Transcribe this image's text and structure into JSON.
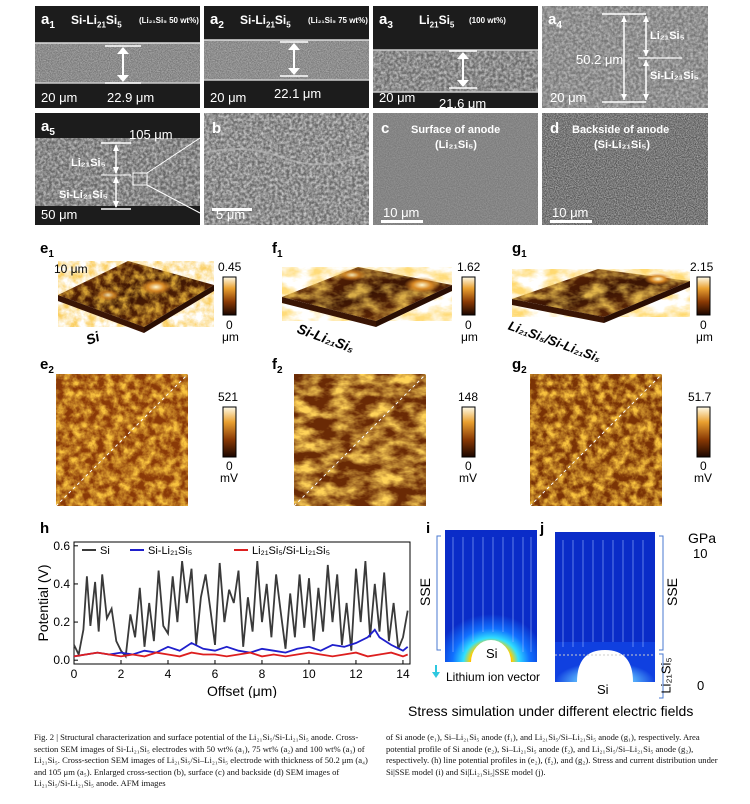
{
  "sem": {
    "a1": {
      "label": "a",
      "sub": "1",
      "title": "Si-Li",
      "title_sub": "21",
      "title_end": "Si",
      "title_sub2": "5",
      "note": "(Li₂₁Si₅ 50 wt%)",
      "thickness": "22.9 μm",
      "scale": "20 μm"
    },
    "a2": {
      "label": "a",
      "sub": "2",
      "title": "Si-Li",
      "title_sub": "21",
      "title_end": "Si",
      "title_sub2": "5",
      "note": "(Li₂₁Si₅ 75 wt%)",
      "thickness": "22.1 μm",
      "scale": "20 μm"
    },
    "a3": {
      "label": "a",
      "sub": "3",
      "title": "Li",
      "title_sub": "21",
      "title_end": "Si",
      "title_sub2": "5",
      "note": "(100 wt%)",
      "thickness": "21.6 μm",
      "scale": "20 μm"
    },
    "a4": {
      "label": "a",
      "sub": "4",
      "thickness": "50.2 μm",
      "layer_top": "Li₂₁Si₅",
      "layer_bottom": "Si-Li₂₁Si₅",
      "scale": "20 μm"
    },
    "a5": {
      "label": "a",
      "sub": "5",
      "thickness": "105 μm",
      "layer_top": "Li₂₁Si₅",
      "layer_bottom": "Si-Li₂₁Si₅",
      "scale": "50 μm"
    },
    "b": {
      "label": "b",
      "scale": "5 μm"
    },
    "c": {
      "label": "c",
      "title": "Surface of anode",
      "subtitle": "(Li₂₁Si₅)",
      "scale": "10 μm"
    },
    "d": {
      "label": "d",
      "title": "Backside of anode",
      "subtitle": "(Si-Li₂₁Si₅)",
      "scale": "10 μm"
    }
  },
  "afm": {
    "e1": {
      "label": "e",
      "sub": "1",
      "name": "Si",
      "size": "10 μm",
      "max": "0.45",
      "min": "0",
      "unit": "μm"
    },
    "f1": {
      "label": "f",
      "sub": "1",
      "name": "Si-Li₂₁Si₅",
      "max": "1.62",
      "min": "0",
      "unit": "μm"
    },
    "g1": {
      "label": "g",
      "sub": "1",
      "name": "Li₂₁Si₅/Si-Li₂₁Si₅",
      "max": "2.15",
      "min": "0",
      "unit": "μm"
    },
    "e2": {
      "label": "e",
      "sub": "2",
      "max": "521",
      "min": "0",
      "unit": "mV"
    },
    "f2": {
      "label": "f",
      "sub": "2",
      "max": "148",
      "min": "0",
      "unit": "mV"
    },
    "g2": {
      "label": "g",
      "sub": "2",
      "max": "51.7",
      "min": "0",
      "unit": "mV"
    }
  },
  "chart_data": {
    "type": "line",
    "label": "h",
    "xlabel": "Offset (μm)",
    "ylabel": "Potential (V)",
    "xlim": [
      0,
      14.3
    ],
    "ylim": [
      -0.02,
      0.62
    ],
    "xticks": [
      0,
      2,
      4,
      6,
      8,
      10,
      12,
      14
    ],
    "yticks": [
      0.0,
      0.2,
      0.4,
      0.6
    ],
    "legend": "top",
    "series": [
      {
        "name": "Si",
        "color": "#3a3a3a",
        "x": [
          0,
          0.2,
          0.4,
          0.55,
          0.7,
          0.9,
          1.05,
          1.2,
          1.4,
          1.6,
          1.8,
          2.0,
          2.2,
          2.4,
          2.6,
          2.8,
          3.0,
          3.2,
          3.4,
          3.6,
          3.8,
          4.0,
          4.2,
          4.4,
          4.6,
          4.8,
          5.0,
          5.2,
          5.4,
          5.6,
          5.8,
          6.0,
          6.2,
          6.4,
          6.6,
          6.8,
          7.0,
          7.2,
          7.4,
          7.6,
          7.8,
          8.0,
          8.2,
          8.4,
          8.6,
          8.8,
          9.0,
          9.2,
          9.4,
          9.6,
          9.8,
          10.0,
          10.2,
          10.4,
          10.6,
          10.8,
          11.0,
          11.2,
          11.4,
          11.6,
          11.8,
          12.0,
          12.2,
          12.4,
          12.6,
          12.8,
          13.0,
          13.2,
          13.4,
          13.6,
          13.8,
          14.0,
          14.2
        ],
        "values": [
          0.08,
          0.03,
          0.16,
          0.44,
          0.18,
          0.41,
          0.15,
          0.45,
          0.22,
          0.27,
          0.1,
          0.05,
          0.02,
          0.24,
          0.12,
          0.38,
          0.07,
          0.3,
          0.1,
          0.47,
          0.18,
          0.14,
          0.44,
          0.2,
          0.52,
          0.3,
          0.48,
          0.08,
          0.33,
          0.45,
          0.27,
          0.08,
          0.51,
          0.2,
          0.37,
          0.3,
          0.47,
          0.07,
          0.33,
          0.15,
          0.52,
          0.2,
          0.4,
          0.12,
          0.45,
          0.25,
          0.06,
          0.35,
          0.12,
          0.45,
          0.17,
          0.43,
          0.1,
          0.38,
          0.15,
          0.5,
          0.2,
          0.45,
          0.08,
          0.3,
          0.05,
          0.48,
          0.2,
          0.52,
          0.12,
          0.4,
          0.15,
          0.46,
          0.1,
          0.3,
          0.06,
          0.12,
          0.26
        ]
      },
      {
        "name": "Si-Li₂₁Si₅",
        "color": "#1f1fcc",
        "x": [
          0,
          0.5,
          1.0,
          1.5,
          2.0,
          2.5,
          3.0,
          3.5,
          4.0,
          4.5,
          5.0,
          5.5,
          6.0,
          6.5,
          7.0,
          7.5,
          8.0,
          8.5,
          9.0,
          9.5,
          10.0,
          10.5,
          11.0,
          11.5,
          12.0,
          12.5,
          12.8,
          13.0,
          13.5,
          14.0,
          14.2
        ],
        "values": [
          0.02,
          0.03,
          0.04,
          0.03,
          0.04,
          0.03,
          0.05,
          0.04,
          0.07,
          0.05,
          0.09,
          0.06,
          0.05,
          0.07,
          0.05,
          0.04,
          0.06,
          0.05,
          0.04,
          0.06,
          0.07,
          0.05,
          0.08,
          0.07,
          0.09,
          0.12,
          0.16,
          0.12,
          0.08,
          0.05,
          0.07
        ]
      },
      {
        "name": "Li₂₁Si₅/Si-Li₂₁Si₅",
        "color": "#dd1f1f",
        "x": [
          0,
          0.5,
          1.0,
          1.5,
          2.0,
          2.5,
          3.0,
          3.5,
          4.0,
          4.5,
          5.0,
          5.5,
          6.0,
          6.5,
          7.0,
          7.5,
          8.0,
          8.5,
          9.0,
          9.5,
          10.0,
          10.5,
          11.0,
          11.5,
          12.0,
          12.5,
          13.0,
          13.5,
          14.0,
          14.2
        ],
        "values": [
          0.02,
          0.03,
          0.04,
          0.03,
          0.02,
          0.03,
          0.02,
          0.04,
          0.03,
          0.02,
          0.04,
          0.03,
          0.03,
          0.02,
          0.03,
          0.04,
          0.02,
          0.03,
          0.02,
          0.03,
          0.04,
          0.03,
          0.02,
          0.03,
          0.04,
          0.02,
          0.03,
          0.04,
          0.02,
          0.03
        ]
      }
    ]
  },
  "sim": {
    "i_label": "i",
    "j_label": "j",
    "sse": "SSE",
    "si": "Si",
    "li_layer": "Li₂₁Si₅",
    "vector": "Lithium ion vector",
    "unit": "GPa",
    "max": "10",
    "min": "0",
    "title": "Stress simulation under different electric fields"
  },
  "caption": {
    "left": "Fig. 2 | Structural characterization and surface potential of the Li₂₁Si₅/Si-Li₂₁Si₅ anode. Cross-section SEM images of Si-Li₂₁Si₅ electrodes with 50 wt% (a₁), 75 wt% (a₂) and 100 wt% (a₃) of Li₂₁Si₅. Cross-section SEM images of Li₂₁Si₅/Si–Li₂₁Si₅ electrode with thickness of 50.2 μm (a₄) and 105 μm (a₅). Enlarged cross-section (b), surface (c) and backside (d) SEM images of Li₂₁Si₅/Si-Li₂₁Si₅ anode. AFM images",
    "right": "of Si anode (e₁), Si–Li₂₁Si₅ anode (f₁), and Li₂₁Si₅/Si–Li₂₁Si₅ anode (g₁), respectively. Area potential profile of Si anode (e₂), Si–Li₂₁Si₅ anode (f₂), and Li₂₁Si₅/Si–Li₂₁Si₅ anode (g₂), respectively. (h) line potential profiles in (e₂), (f₂), and (g₂). Stress and current distribution under Si|SSE model (i) and Si|Li₂₁Si₅|SSE model (j)."
  }
}
